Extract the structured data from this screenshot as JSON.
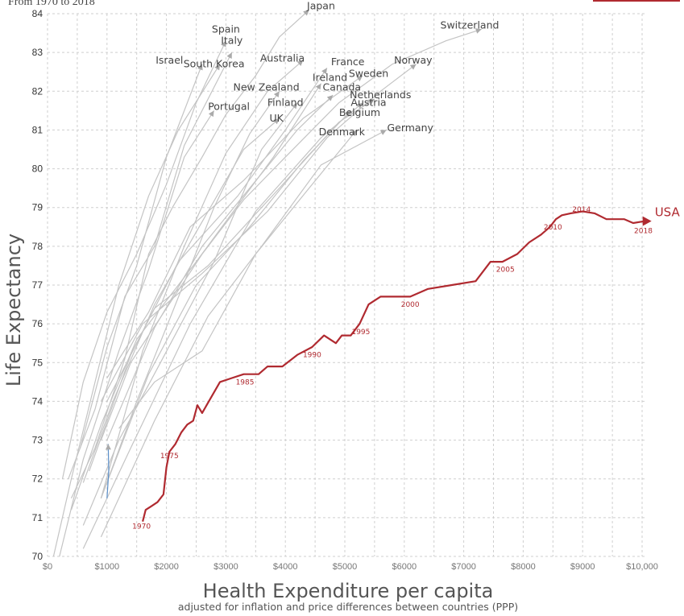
{
  "subtitle_partial": "From 1970 to 2018",
  "chart_data": {
    "type": "line",
    "xlabel": "Health Expenditure per capita",
    "xlabel_note": "adjusted for inflation and price differences between countries (PPP)",
    "ylabel": "Life Expectancy",
    "xlim": [
      0,
      10000
    ],
    "ylim": [
      70,
      84
    ],
    "x_ticks": [
      0,
      1000,
      2000,
      3000,
      4000,
      5000,
      6000,
      7000,
      8000,
      9000,
      10000
    ],
    "x_tick_labels": [
      "$0",
      "$1000",
      "$2000",
      "$3000",
      "$4000",
      "$5000",
      "$6000",
      "$7000",
      "$8000",
      "$9000",
      "$10,000"
    ],
    "y_ticks": [
      70,
      71,
      72,
      73,
      74,
      75,
      76,
      77,
      78,
      79,
      80,
      81,
      82,
      83,
      84
    ],
    "grid": true,
    "highlight_color": "#b02a30",
    "other_color": "#c4c4c4",
    "highlight": {
      "name": "USA",
      "points": [
        [
          1600,
          70.9
        ],
        [
          1650,
          71.2
        ],
        [
          1750,
          71.3
        ],
        [
          1850,
          71.4
        ],
        [
          1950,
          71.6
        ],
        [
          2000,
          72.3
        ],
        [
          2050,
          72.7
        ],
        [
          2150,
          72.9
        ],
        [
          2250,
          73.2
        ],
        [
          2350,
          73.4
        ],
        [
          2450,
          73.5
        ],
        [
          2520,
          73.9
        ],
        [
          2600,
          73.7
        ],
        [
          2750,
          74.1
        ],
        [
          2900,
          74.5
        ],
        [
          3100,
          74.6
        ],
        [
          3300,
          74.7
        ],
        [
          3550,
          74.7
        ],
        [
          3700,
          74.9
        ],
        [
          3950,
          74.9
        ],
        [
          4200,
          75.2
        ],
        [
          4450,
          75.4
        ],
        [
          4650,
          75.7
        ],
        [
          4850,
          75.5
        ],
        [
          4950,
          75.7
        ],
        [
          5100,
          75.7
        ],
        [
          5250,
          76.0
        ],
        [
          5400,
          76.5
        ],
        [
          5600,
          76.7
        ],
        [
          5850,
          76.7
        ],
        [
          6100,
          76.7
        ],
        [
          6400,
          76.9
        ],
        [
          6800,
          77.0
        ],
        [
          7200,
          77.1
        ],
        [
          7450,
          77.6
        ],
        [
          7650,
          77.6
        ],
        [
          7900,
          77.8
        ],
        [
          8100,
          78.1
        ],
        [
          8300,
          78.3
        ],
        [
          8450,
          78.5
        ],
        [
          8550,
          78.7
        ],
        [
          8650,
          78.8
        ],
        [
          8800,
          78.85
        ],
        [
          9000,
          78.9
        ],
        [
          9200,
          78.85
        ],
        [
          9400,
          78.7
        ],
        [
          9700,
          78.7
        ],
        [
          9850,
          78.6
        ],
        [
          10050,
          78.65
        ]
      ],
      "year_labels": [
        {
          "year": "1970",
          "x": 1580,
          "y": 70.78
        },
        {
          "year": "1975",
          "x": 2050,
          "y": 72.6
        },
        {
          "year": "1985",
          "x": 3320,
          "y": 74.5
        },
        {
          "year": "1990",
          "x": 4450,
          "y": 75.2
        },
        {
          "year": "1995",
          "x": 5270,
          "y": 75.8
        },
        {
          "year": "2000",
          "x": 6100,
          "y": 76.5
        },
        {
          "year": "2005",
          "x": 7700,
          "y": 77.4
        },
        {
          "year": "2010",
          "x": 8500,
          "y": 78.5
        },
        {
          "year": "2014",
          "x": 8980,
          "y": 78.95
        },
        {
          "year": "2018",
          "x": 10020,
          "y": 78.4
        }
      ]
    },
    "series": [
      {
        "name": "Japan",
        "label_anchor": [
          4600,
          84.2
        ],
        "points": [
          [
            400,
            71.5
          ],
          [
            800,
            72.8
          ],
          [
            1300,
            75.1
          ],
          [
            1700,
            77.8
          ],
          [
            2100,
            79.0
          ],
          [
            2600,
            80.3
          ],
          [
            3000,
            81.4
          ],
          [
            3500,
            82.4
          ],
          [
            3900,
            83.4
          ],
          [
            4400,
            84.1
          ]
        ]
      },
      {
        "name": "Switzerland",
        "label_anchor": [
          7100,
          83.7
        ],
        "points": [
          [
            900,
            73.0
          ],
          [
            1400,
            75.0
          ],
          [
            2000,
            76.4
          ],
          [
            2600,
            77.8
          ],
          [
            3300,
            79.2
          ],
          [
            4000,
            80.3
          ],
          [
            4900,
            81.7
          ],
          [
            5800,
            82.7
          ],
          [
            6700,
            83.3
          ],
          [
            7300,
            83.6
          ]
        ]
      },
      {
        "name": "Spain",
        "label_anchor": [
          3000,
          83.6
        ],
        "points": [
          [
            250,
            72.0
          ],
          [
            600,
            74.5
          ],
          [
            1000,
            76.3
          ],
          [
            1500,
            77.8
          ],
          [
            2000,
            79.6
          ],
          [
            2500,
            81.7
          ],
          [
            3000,
            83.3
          ]
        ]
      },
      {
        "name": "Italy",
        "label_anchor": [
          3100,
          83.3
        ],
        "points": [
          [
            350,
            72.0
          ],
          [
            800,
            73.8
          ],
          [
            1300,
            76.7
          ],
          [
            1800,
            78.0
          ],
          [
            2300,
            80.6
          ],
          [
            2800,
            82.1
          ],
          [
            3100,
            83.0
          ]
        ]
      },
      {
        "name": "Israel",
        "label_anchor": [
          2050,
          82.8
        ],
        "points": [
          [
            550,
            72.8
          ],
          [
            1000,
            75.4
          ],
          [
            1500,
            77.5
          ],
          [
            2000,
            80.3
          ],
          [
            2600,
            82.7
          ]
        ]
      },
      {
        "name": "South Korea",
        "label_anchor": [
          2800,
          82.7
        ],
        "points": [
          [
            100,
            70.0
          ],
          [
            400,
            72.0
          ],
          [
            800,
            74.5
          ],
          [
            1200,
            77.0
          ],
          [
            1700,
            79.3
          ],
          [
            2200,
            81.0
          ],
          [
            2900,
            82.7
          ]
        ]
      },
      {
        "name": "Australia",
        "label_anchor": [
          3950,
          82.85
        ],
        "points": [
          [
            900,
            71.5
          ],
          [
            1600,
            75.3
          ],
          [
            2300,
            78.0
          ],
          [
            3000,
            80.4
          ],
          [
            3700,
            82.0
          ],
          [
            4300,
            82.8
          ]
        ]
      },
      {
        "name": "France",
        "label_anchor": [
          5050,
          82.75
        ],
        "points": [
          [
            700,
            72.2
          ],
          [
            1400,
            75.2
          ],
          [
            2200,
            77.6
          ],
          [
            3200,
            79.3
          ],
          [
            4000,
            81.0
          ],
          [
            4700,
            82.6
          ]
        ]
      },
      {
        "name": "Norway",
        "label_anchor": [
          6150,
          82.8
        ],
        "points": [
          [
            900,
            74.0
          ],
          [
            1600,
            76.0
          ],
          [
            2600,
            77.3
          ],
          [
            3700,
            78.9
          ],
          [
            4700,
            80.8
          ],
          [
            5600,
            82.0
          ],
          [
            6200,
            82.7
          ]
        ]
      },
      {
        "name": "Sweden",
        "label_anchor": [
          5400,
          82.45
        ],
        "points": [
          [
            1000,
            74.6
          ],
          [
            1700,
            76.3
          ],
          [
            2400,
            78.5
          ],
          [
            3300,
            79.7
          ],
          [
            4300,
            81.3
          ],
          [
            5300,
            82.4
          ]
        ]
      },
      {
        "name": "Ireland",
        "label_anchor": [
          4750,
          82.35
        ],
        "points": [
          [
            400,
            71.2
          ],
          [
            900,
            73.4
          ],
          [
            1500,
            75.6
          ],
          [
            2500,
            77.6
          ],
          [
            3800,
            80.3
          ],
          [
            4600,
            82.2
          ]
        ]
      },
      {
        "name": "Canada",
        "label_anchor": [
          4950,
          82.1
        ],
        "points": [
          [
            1000,
            73.0
          ],
          [
            1800,
            75.9
          ],
          [
            2600,
            78.0
          ],
          [
            3400,
            79.5
          ],
          [
            4200,
            81.0
          ],
          [
            4800,
            81.9
          ]
        ]
      },
      {
        "name": "New Zealand",
        "label_anchor": [
          3680,
          82.1
        ],
        "points": [
          [
            900,
            71.5
          ],
          [
            1500,
            74.0
          ],
          [
            2100,
            76.3
          ],
          [
            2800,
            79.0
          ],
          [
            3400,
            80.9
          ],
          [
            3900,
            82.0
          ]
        ]
      },
      {
        "name": "Netherlands",
        "label_anchor": [
          5600,
          81.9
        ],
        "points": [
          [
            1000,
            74.0
          ],
          [
            1800,
            76.4
          ],
          [
            2700,
            77.5
          ],
          [
            3900,
            79.5
          ],
          [
            4900,
            81.2
          ],
          [
            5500,
            81.8
          ]
        ]
      },
      {
        "name": "Finland",
        "label_anchor": [
          4000,
          81.7
        ],
        "points": [
          [
            600,
            70.8
          ],
          [
            1200,
            73.0
          ],
          [
            1900,
            75.0
          ],
          [
            2800,
            77.6
          ],
          [
            3600,
            80.5
          ],
          [
            4200,
            81.7
          ]
        ]
      },
      {
        "name": "Austria",
        "label_anchor": [
          5400,
          81.7
        ],
        "points": [
          [
            600,
            70.2
          ],
          [
            1400,
            72.8
          ],
          [
            2400,
            76.0
          ],
          [
            3500,
            78.9
          ],
          [
            4600,
            80.8
          ],
          [
            5300,
            81.7
          ]
        ]
      },
      {
        "name": "Portugal",
        "label_anchor": [
          3050,
          81.6
        ],
        "points": [
          [
            200,
            70.0
          ],
          [
            600,
            72.5
          ],
          [
            1200,
            75.3
          ],
          [
            1700,
            77.4
          ],
          [
            2300,
            80.3
          ],
          [
            2800,
            81.5
          ]
        ]
      },
      {
        "name": "Belgium",
        "label_anchor": [
          5250,
          81.45
        ],
        "points": [
          [
            900,
            71.5
          ],
          [
            1700,
            74.7
          ],
          [
            2500,
            77.0
          ],
          [
            3400,
            78.5
          ],
          [
            4300,
            80.2
          ],
          [
            5100,
            81.5
          ]
        ]
      },
      {
        "name": "UK",
        "label_anchor": [
          3850,
          81.3
        ],
        "points": [
          [
            600,
            71.9
          ],
          [
            1100,
            74.0
          ],
          [
            1800,
            76.5
          ],
          [
            2700,
            78.9
          ],
          [
            3300,
            80.5
          ],
          [
            3900,
            81.3
          ]
        ]
      },
      {
        "name": "Denmark",
        "label_anchor": [
          4950,
          80.95
        ],
        "points": [
          [
            1200,
            73.3
          ],
          [
            1800,
            74.5
          ],
          [
            2600,
            75.3
          ],
          [
            3500,
            77.8
          ],
          [
            4400,
            79.5
          ],
          [
            5200,
            81.0
          ]
        ]
      },
      {
        "name": "Germany",
        "label_anchor": [
          6100,
          81.05
        ],
        "points": [
          [
            900,
            70.5
          ],
          [
            1800,
            73.5
          ],
          [
            2700,
            76.2
          ],
          [
            3600,
            78.0
          ],
          [
            4600,
            80.1
          ],
          [
            5700,
            81.0
          ]
        ]
      },
      {
        "name": "",
        "color": "#5b8fc9",
        "points": [
          [
            1000,
            71.5
          ],
          [
            1030,
            72.2
          ],
          [
            1020,
            72.9
          ]
        ]
      }
    ]
  }
}
